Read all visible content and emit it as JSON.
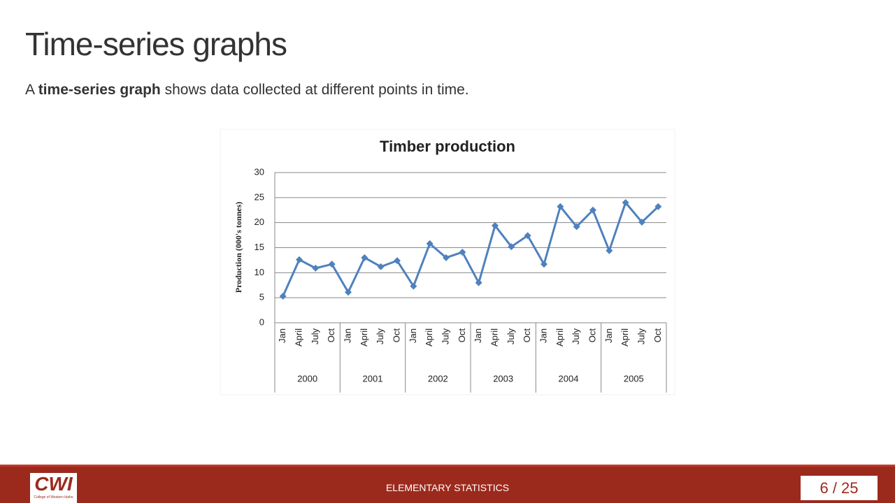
{
  "slide": {
    "title": "Time-series graphs",
    "subtitle": {
      "before": "A ",
      "bold": "time-series graph",
      "after": " shows data collected at different points in time."
    }
  },
  "chart_data": {
    "type": "line",
    "title": "Timber production",
    "y_label": "Production (000's tonnes)",
    "categories": [
      "Jan",
      "April",
      "July",
      "Oct",
      "Jan",
      "April",
      "July",
      "Oct",
      "Jan",
      "April",
      "July",
      "Oct",
      "Jan",
      "April",
      "July",
      "Oct",
      "Jan",
      "April",
      "July",
      "Oct",
      "Jan",
      "April",
      "July",
      "Oct"
    ],
    "x_groups": [
      "2000",
      "2001",
      "2002",
      "2003",
      "2004",
      "2005"
    ],
    "values": [
      5.3,
      12.6,
      10.9,
      11.7,
      6.1,
      13.0,
      11.2,
      12.4,
      7.3,
      15.8,
      13.0,
      14.1,
      8.0,
      19.4,
      15.2,
      17.4,
      11.7,
      23.2,
      19.2,
      22.5,
      14.4,
      24.0,
      20.1,
      23.2
    ],
    "color": "#4f81bd",
    "ylim": [
      0,
      30
    ],
    "yticks": [
      0,
      5,
      10,
      15,
      20,
      25,
      30
    ],
    "grid": true
  },
  "footer": {
    "logo": "CWI",
    "logo_caption": "College of Western Idaho",
    "course": "ELEMENTARY STATISTICS",
    "page": "6 / 25"
  }
}
